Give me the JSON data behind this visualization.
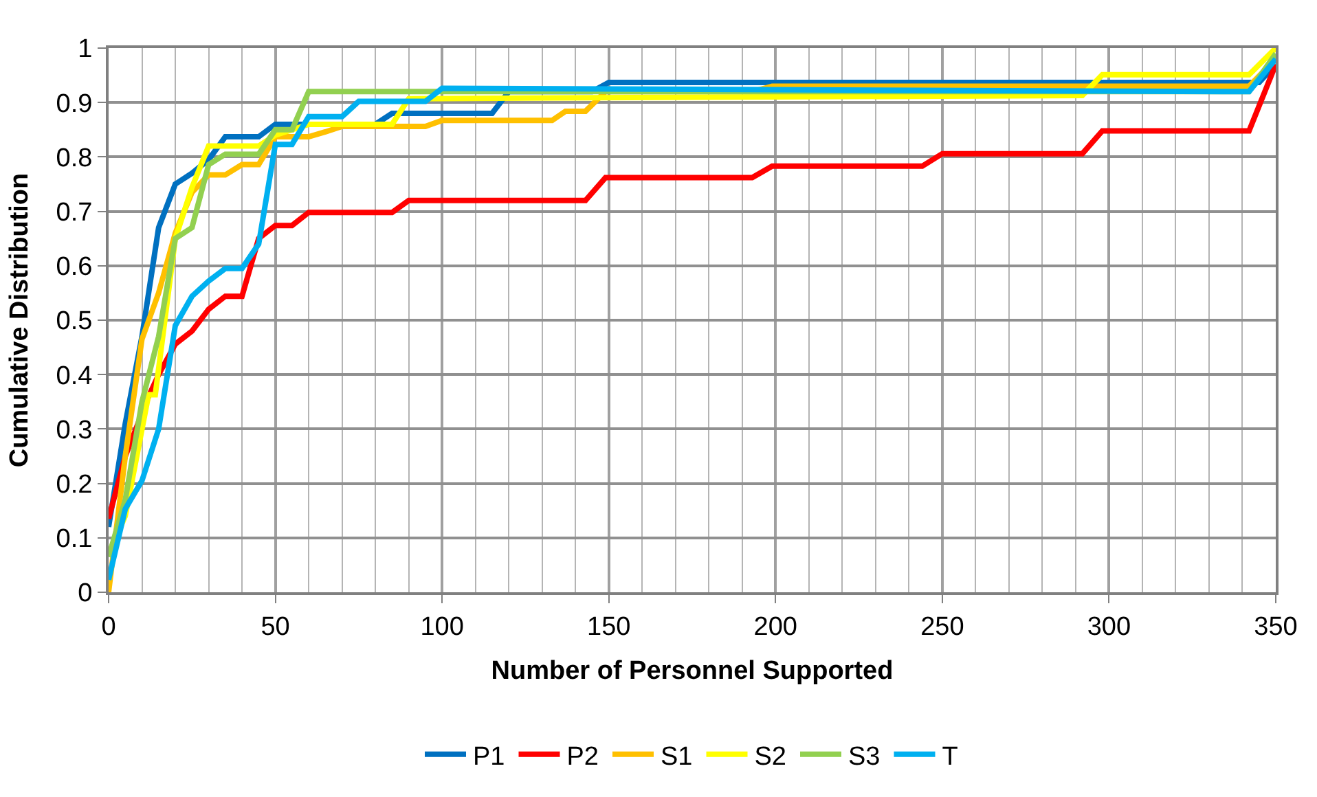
{
  "chart_data": {
    "type": "line",
    "xlabel": "Number of Personnel Supported",
    "ylabel": "Cumulative Distribution",
    "xlim": [
      0,
      350
    ],
    "xticks": [
      0,
      50,
      100,
      150,
      200,
      250,
      300,
      350
    ],
    "ylim": [
      0,
      1
    ],
    "yticks": [
      0,
      0.1,
      0.2,
      0.3,
      0.4,
      0.5,
      0.6,
      0.7,
      0.8,
      0.9,
      1
    ],
    "grid": true,
    "legend": "bottom",
    "marker": "none",
    "line_style": "solid",
    "series": [
      {
        "name": "P1",
        "color": "#0070c0",
        "x": [
          0,
          5,
          10,
          15,
          20,
          25,
          30,
          35,
          40,
          45,
          50,
          80,
          85,
          115,
          120,
          145,
          150,
          345,
          350
        ],
        "values": [
          0.12,
          0.31,
          0.47,
          0.67,
          0.75,
          0.77,
          0.795,
          0.837,
          0.837,
          0.837,
          0.86,
          0.86,
          0.88,
          0.88,
          0.92,
          0.92,
          0.937,
          0.937,
          0.97
        ]
      },
      {
        "name": "P2",
        "color": "#ff0000",
        "x": [
          0,
          5,
          12,
          15,
          20,
          25,
          30,
          35,
          40,
          45,
          50,
          55,
          60,
          85,
          90,
          143,
          149,
          193,
          199,
          244,
          250,
          292,
          298,
          342,
          350
        ],
        "values": [
          0.135,
          0.25,
          0.36,
          0.4,
          0.456,
          0.48,
          0.52,
          0.544,
          0.544,
          0.65,
          0.674,
          0.674,
          0.698,
          0.698,
          0.72,
          0.72,
          0.762,
          0.762,
          0.783,
          0.783,
          0.806,
          0.806,
          0.848,
          0.848,
          0.97
        ]
      },
      {
        "name": "S1",
        "color": "#ffc000",
        "x": [
          0,
          5,
          10,
          15,
          20,
          25,
          30,
          35,
          40,
          45,
          50,
          55,
          60,
          65,
          70,
          95,
          100,
          133,
          137,
          143,
          149,
          193,
          199,
          342,
          350
        ],
        "values": [
          0,
          0.25,
          0.465,
          0.55,
          0.66,
          0.735,
          0.767,
          0.767,
          0.786,
          0.786,
          0.837,
          0.837,
          0.837,
          0.846,
          0.856,
          0.856,
          0.867,
          0.867,
          0.884,
          0.884,
          0.92,
          0.92,
          0.93,
          0.93,
          0.98
        ]
      },
      {
        "name": "S2",
        "color": "#ffff00",
        "x": [
          0,
          5,
          12,
          14,
          20,
          25,
          30,
          45,
          50,
          60,
          85,
          90,
          292,
          298,
          342,
          350
        ],
        "values": [
          0.07,
          0.14,
          0.363,
          0.363,
          0.65,
          0.744,
          0.82,
          0.82,
          0.84,
          0.86,
          0.86,
          0.907,
          0.913,
          0.951,
          0.951,
          1.0
        ]
      },
      {
        "name": "S3",
        "color": "#92d050",
        "x": [
          0,
          5,
          10,
          15,
          20,
          25,
          30,
          35,
          45,
          50,
          55,
          60,
          342,
          350
        ],
        "values": [
          0.065,
          0.17,
          0.35,
          0.47,
          0.65,
          0.67,
          0.786,
          0.805,
          0.805,
          0.85,
          0.85,
          0.92,
          0.92,
          0.99
        ]
      },
      {
        "name": "T",
        "color": "#00b0f0",
        "x": [
          0,
          5,
          10,
          15,
          20,
          25,
          30,
          35,
          40,
          45,
          50,
          55,
          60,
          70,
          75,
          95,
          100,
          342,
          350
        ],
        "values": [
          0.023,
          0.153,
          0.205,
          0.3,
          0.49,
          0.544,
          0.572,
          0.595,
          0.595,
          0.64,
          0.823,
          0.823,
          0.874,
          0.874,
          0.902,
          0.902,
          0.926,
          0.92,
          0.98
        ]
      }
    ]
  }
}
